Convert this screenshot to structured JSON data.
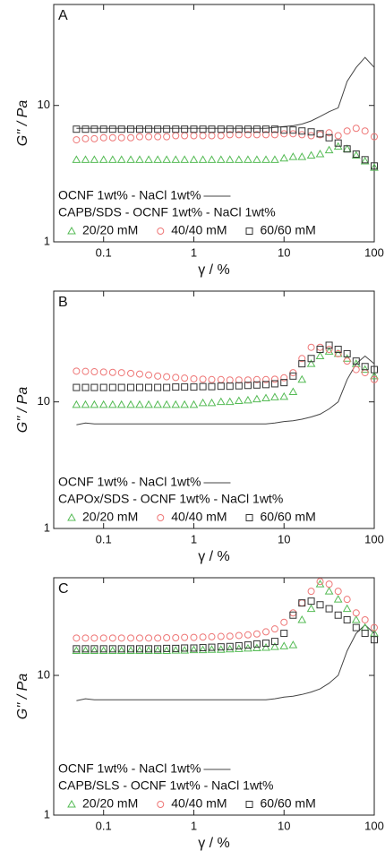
{
  "chart_data": [
    {
      "type": "line",
      "label": "A",
      "x_label": "γ / %",
      "y_label": "G'' / Pa",
      "legend_title": "CAPB/SDS - OCNF 1wt% - NaCl 1wt%",
      "log_x": true,
      "log_y": true,
      "xlim": [
        0.028,
        100
      ],
      "ylim": [
        1,
        55
      ],
      "xticks": [
        0.1,
        1,
        10,
        100
      ],
      "yticks": [
        1,
        10
      ],
      "x": [
        0.05,
        0.063,
        0.079,
        0.1,
        0.126,
        0.158,
        0.2,
        0.251,
        0.316,
        0.398,
        0.5,
        0.63,
        0.79,
        1,
        1.26,
        1.58,
        2,
        2.51,
        3.16,
        3.98,
        5,
        6.3,
        7.9,
        10,
        12.6,
        15.8,
        20,
        25.1,
        31.6,
        39.8,
        50,
        63,
        79,
        100
      ],
      "series": [
        {
          "name": "OCNF 1wt% - NaCl 1wt%",
          "style": "line",
          "color": "#444444",
          "values": [
            6.8,
            6.8,
            6.8,
            6.8,
            6.8,
            6.8,
            6.8,
            6.8,
            6.8,
            6.8,
            6.8,
            6.8,
            6.8,
            6.8,
            6.8,
            6.8,
            6.8,
            6.8,
            6.8,
            6.8,
            6.8,
            6.8,
            6.9,
            7,
            7.1,
            7.3,
            7.7,
            8.3,
            9,
            9.6,
            15,
            19,
            22.5,
            19
          ]
        },
        {
          "name": "20/20 mM",
          "style": "triangle",
          "color": "#55bb55",
          "values": [
            4,
            4,
            4,
            4,
            4,
            4,
            4,
            4,
            4,
            4,
            4,
            4,
            4,
            4,
            4,
            4,
            4,
            4,
            4,
            4,
            4,
            4,
            4,
            4.1,
            4.2,
            4.2,
            4.3,
            4.4,
            4.7,
            5,
            4.8,
            4.3,
            3.9,
            3.5
          ]
        },
        {
          "name": "40/40 mM",
          "style": "circle",
          "color": "#ee7777",
          "values": [
            5.6,
            5.7,
            5.7,
            5.8,
            5.8,
            5.8,
            5.8,
            5.9,
            5.9,
            5.9,
            5.9,
            6,
            6,
            6,
            6,
            6,
            6,
            6.1,
            6.1,
            6.1,
            6.1,
            6.1,
            6.1,
            6.2,
            6.2,
            6.1,
            6,
            6.1,
            6.3,
            6,
            6.5,
            6.8,
            6.5,
            5.9
          ]
        },
        {
          "name": "60/60 mM",
          "style": "square",
          "color": "#333333",
          "values": [
            6.7,
            6.7,
            6.7,
            6.7,
            6.7,
            6.7,
            6.7,
            6.7,
            6.7,
            6.7,
            6.7,
            6.7,
            6.7,
            6.7,
            6.7,
            6.7,
            6.7,
            6.7,
            6.7,
            6.7,
            6.7,
            6.7,
            6.7,
            6.6,
            6.6,
            6.5,
            6.4,
            6.2,
            5.8,
            5.3,
            4.8,
            4.4,
            4,
            3.6
          ]
        }
      ]
    },
    {
      "type": "line",
      "label": "B",
      "x_label": "γ / %",
      "y_label": "G'' / Pa",
      "legend_title": "CAPOx/SDS - OCNF 1wt% - NaCl 1wt%",
      "log_x": true,
      "log_y": true,
      "xlim": [
        0.028,
        100
      ],
      "ylim": [
        1,
        75
      ],
      "xticks": [
        0.1,
        1,
        10,
        100
      ],
      "yticks": [
        1,
        10
      ],
      "x": [
        0.05,
        0.063,
        0.079,
        0.1,
        0.126,
        0.158,
        0.2,
        0.251,
        0.316,
        0.398,
        0.5,
        0.63,
        0.79,
        1,
        1.26,
        1.58,
        2,
        2.51,
        3.16,
        3.98,
        5,
        6.3,
        7.9,
        10,
        12.6,
        15.8,
        20,
        25.1,
        31.6,
        39.8,
        50,
        63,
        79,
        100
      ],
      "series": [
        {
          "name": "OCNF 1wt% - NaCl 1wt%",
          "style": "line",
          "color": "#444444",
          "values": [
            6.6,
            6.8,
            6.7,
            6.7,
            6.7,
            6.7,
            6.7,
            6.7,
            6.7,
            6.7,
            6.7,
            6.7,
            6.7,
            6.7,
            6.7,
            6.7,
            6.7,
            6.7,
            6.7,
            6.7,
            6.7,
            6.7,
            6.8,
            7,
            7.1,
            7.3,
            7.6,
            8,
            8.8,
            10,
            15,
            20,
            23,
            20
          ]
        },
        {
          "name": "20/20 mM",
          "style": "triangle",
          "color": "#55bb55",
          "values": [
            9.5,
            9.5,
            9.5,
            9.5,
            9.5,
            9.5,
            9.5,
            9.5,
            9.5,
            9.5,
            9.5,
            9.5,
            9.5,
            9.5,
            9.8,
            9.8,
            10,
            10,
            10.2,
            10.3,
            10.5,
            10.7,
            10.9,
            11,
            12,
            15,
            20,
            23,
            25,
            24,
            22,
            20,
            18,
            16
          ]
        },
        {
          "name": "40/40 mM",
          "style": "circle",
          "color": "#ee7777",
          "values": [
            17.5,
            17.4,
            17.3,
            17.2,
            17.1,
            17,
            16.8,
            16.6,
            16.3,
            16,
            15.8,
            15.6,
            15.4,
            15.2,
            15.1,
            15,
            15,
            14.9,
            14.9,
            14.9,
            15,
            15,
            15.1,
            15.5,
            17,
            22,
            27,
            27,
            26,
            24,
            21,
            18,
            17,
            15
          ]
        },
        {
          "name": "60/60 mM",
          "style": "square",
          "color": "#333333",
          "values": [
            13,
            13,
            13,
            13,
            13,
            13,
            13,
            13,
            13,
            13,
            13,
            13.1,
            13.1,
            13.1,
            13.2,
            13.2,
            13.3,
            13.3,
            13.4,
            13.5,
            13.6,
            13.7,
            13.9,
            14.2,
            16,
            20,
            22,
            26,
            28,
            26,
            24,
            21,
            19,
            18
          ]
        }
      ]
    },
    {
      "type": "line",
      "label": "C",
      "x_label": "γ / %",
      "y_label": "G'' / Pa",
      "legend_title": "CAPB/SLS - OCNF 1wt% - NaCl 1wt%",
      "log_x": true,
      "log_y": true,
      "xlim": [
        0.028,
        100
      ],
      "ylim": [
        1,
        50
      ],
      "xticks": [
        0.1,
        1,
        10,
        100
      ],
      "yticks": [
        1,
        10
      ],
      "x": [
        0.05,
        0.063,
        0.079,
        0.1,
        0.126,
        0.158,
        0.2,
        0.251,
        0.316,
        0.398,
        0.5,
        0.63,
        0.79,
        1,
        1.26,
        1.58,
        2,
        2.51,
        3.16,
        3.98,
        5,
        6.3,
        7.9,
        10,
        12.6,
        15.8,
        20,
        25.1,
        31.6,
        39.8,
        50,
        63,
        79,
        100
      ],
      "series": [
        {
          "name": "OCNF 1wt% - NaCl 1wt%",
          "style": "line",
          "color": "#444444",
          "values": [
            6.6,
            6.8,
            6.7,
            6.7,
            6.7,
            6.7,
            6.7,
            6.7,
            6.7,
            6.7,
            6.7,
            6.7,
            6.7,
            6.7,
            6.7,
            6.7,
            6.7,
            6.7,
            6.7,
            6.7,
            6.7,
            6.7,
            6.8,
            7,
            7.1,
            7.3,
            7.6,
            8,
            8.8,
            10,
            15,
            20,
            23,
            20
          ]
        },
        {
          "name": "20/20 mM",
          "style": "triangle",
          "color": "#55bb55",
          "values": [
            15,
            15,
            15,
            15,
            15,
            15,
            15,
            15,
            15,
            15,
            15,
            15.1,
            15.1,
            15.2,
            15.2,
            15.3,
            15.3,
            15.4,
            15.5,
            15.6,
            15.7,
            15.8,
            16,
            16.2,
            16.5,
            25,
            30,
            45,
            40,
            35,
            30,
            25,
            22,
            20
          ]
        },
        {
          "name": "40/40 mM",
          "style": "circle",
          "color": "#ee7777",
          "values": [
            18.5,
            18.5,
            18.5,
            18.5,
            18.5,
            18.5,
            18.5,
            18.5,
            18.5,
            18.5,
            18.6,
            18.6,
            18.7,
            18.7,
            18.8,
            18.9,
            19,
            19.1,
            19.3,
            19.5,
            19.8,
            20.5,
            21.5,
            24,
            28,
            33,
            40,
            47,
            45,
            40,
            35,
            28,
            25,
            22
          ]
        },
        {
          "name": "60/60 mM",
          "style": "square",
          "color": "#333333",
          "values": [
            15.5,
            15.5,
            15.5,
            15.5,
            15.5,
            15.5,
            15.5,
            15.5,
            15.5,
            15.5,
            15.6,
            15.6,
            15.7,
            15.7,
            15.8,
            15.9,
            16,
            16.1,
            16.3,
            16.5,
            16.8,
            17,
            17.5,
            20,
            27,
            33,
            34,
            32,
            30,
            27,
            25,
            22,
            20,
            18
          ]
        }
      ]
    }
  ]
}
